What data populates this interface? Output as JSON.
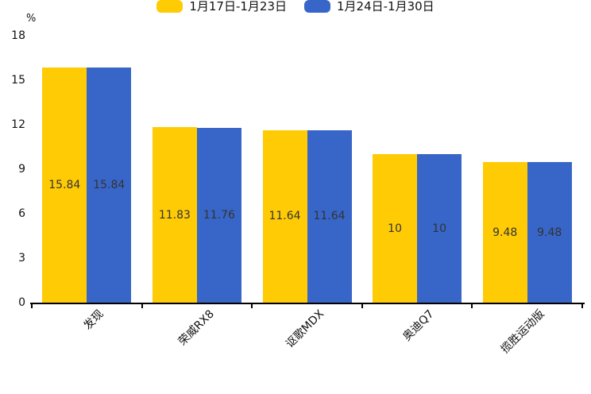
{
  "chart_data": {
    "type": "bar",
    "title": "",
    "unit_label": "%",
    "categories": [
      "发现",
      "荣威RX8",
      "讴歌MDX",
      "奥迪Q7",
      "揽胜运动版"
    ],
    "series": [
      {
        "name": "1月17日-1月23日",
        "color": "#FFCB05",
        "values": [
          15.84,
          11.83,
          11.64,
          10,
          9.48
        ]
      },
      {
        "name": "1月24日-1月30日",
        "color": "#3866C8",
        "values": [
          15.84,
          11.76,
          11.64,
          10,
          9.48
        ]
      }
    ],
    "ylim": [
      0,
      18
    ],
    "yticks": [
      0,
      3,
      6,
      9,
      12,
      15,
      18
    ],
    "legend_position": "top",
    "grid": false,
    "value_labels_shown": true,
    "value_label_color": "#333333",
    "axis_color": "#000000",
    "xlabel_rotation_deg": 45
  }
}
